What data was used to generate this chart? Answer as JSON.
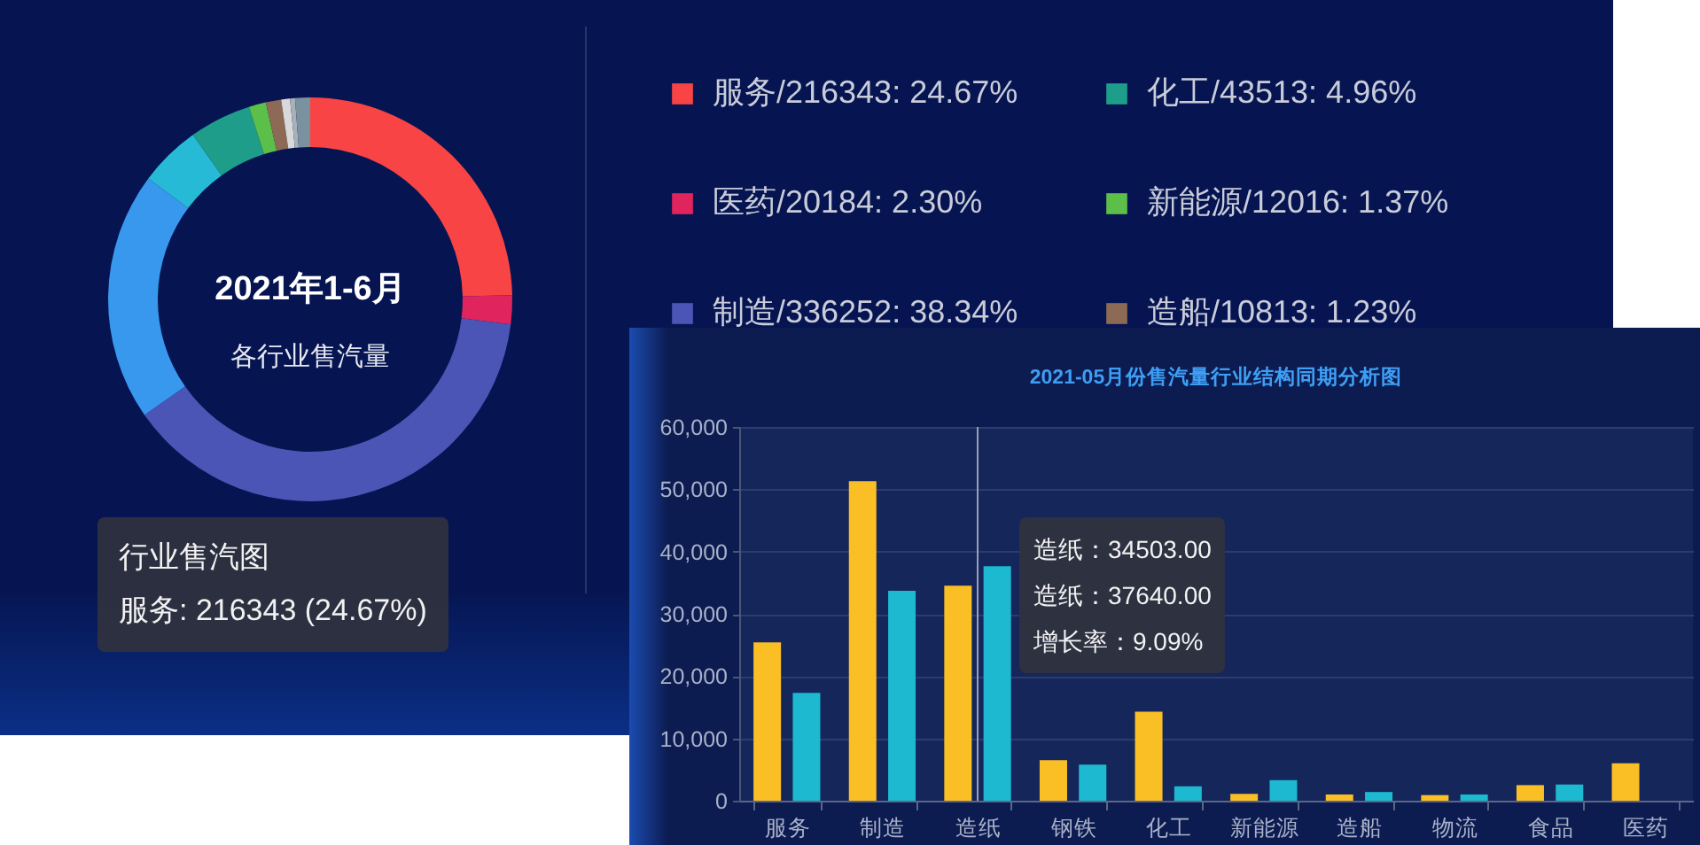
{
  "chart_data": [
    {
      "type": "donut",
      "title": "2021年1-6月",
      "subtitle": "各行业售汽量",
      "categories": [
        "服务/216343: 24.67%",
        "医药/20184: 2.30%",
        "制造/336252: 38.34%",
        null,
        null,
        "化工/43513: 4.96%",
        "新能源/12016: 1.37%",
        "造船/10813: 1.23%",
        null,
        null,
        null
      ],
      "values": [
        24.67,
        2.3,
        38.34,
        19.9,
        4.93,
        4.96,
        1.37,
        1.23,
        0.7,
        0.4,
        1.2
      ],
      "colors": [
        "#f84444",
        "#e0245e",
        "#4a55b5",
        "#3898ee",
        "#26bad6",
        "#1e9e8a",
        "#5cbf4a",
        "#8d6a55",
        "#d9d9d9",
        "#a8b0b8",
        "#7a91a0"
      ],
      "legend": "right",
      "annotations": [
        "行业售汽图",
        "服务: 216343 (24.67%)"
      ]
    },
    {
      "type": "bar",
      "title": "2021-05月份售汽量行业结构同期分析图",
      "categories": [
        "服务",
        "制造",
        "造纸",
        "钢铁",
        "化工",
        "新能源",
        "造船",
        "物流",
        "食品",
        "医药"
      ],
      "series": [
        {
          "color": "#fbbf26",
          "values": [
            25400,
            51300,
            34503,
            6500,
            14300,
            1100,
            1000,
            900,
            2500,
            6000
          ]
        },
        {
          "color": "#1cb9d1",
          "values": [
            17300,
            33700,
            37640,
            5800,
            2300,
            3300,
            1400,
            1000,
            2600,
            null
          ]
        }
      ],
      "ylim": [
        0,
        60000
      ],
      "yticks": [
        0,
        {
          "value": 10000,
          "label": "10,000"
        },
        {
          "value": 20000,
          "label": "20,000"
        },
        {
          "value": 30000,
          "label": "30,000"
        },
        {
          "value": 40000,
          "label": "40,000"
        },
        {
          "value": 50000,
          "label": "50,000"
        },
        {
          "value": 60000,
          "label": "60,000"
        }
      ],
      "grid": "y",
      "ref_lines": [
        {
          "axis": "x",
          "value": "造纸",
          "color": "#9aa0b4"
        }
      ],
      "annotations": [
        "造纸：34503.00",
        "造纸：37640.00",
        "增长率：9.09%"
      ]
    }
  ]
}
